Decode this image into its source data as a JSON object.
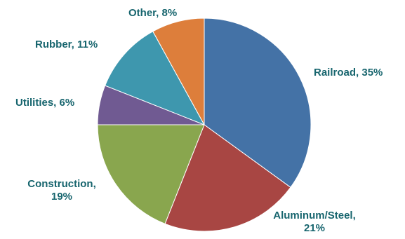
{
  "chart_data": {
    "type": "pie",
    "title": "",
    "slices": [
      {
        "category": "Railroad",
        "value": 35,
        "label_lines": [
          "Railroad, 35%"
        ],
        "color": "#4472a6"
      },
      {
        "category": "Aluminum/Steel",
        "value": 21,
        "label_lines": [
          "Aluminum/Steel,",
          "21%"
        ],
        "color": "#a84643"
      },
      {
        "category": "Construction",
        "value": 19,
        "label_lines": [
          "Construction,",
          "19%"
        ],
        "color": "#89a64e"
      },
      {
        "category": "Utilities",
        "value": 6,
        "label_lines": [
          "Utilities, 6%"
        ],
        "color": "#705a92"
      },
      {
        "category": "Rubber",
        "value": 11,
        "label_lines": [
          "Rubber, 11%"
        ],
        "color": "#3e97ae"
      },
      {
        "category": "Other",
        "value": 8,
        "label_lines": [
          "Other, 8%"
        ],
        "color": "#dd7e3b"
      }
    ],
    "label_color": "#17656e",
    "legend": "none"
  }
}
